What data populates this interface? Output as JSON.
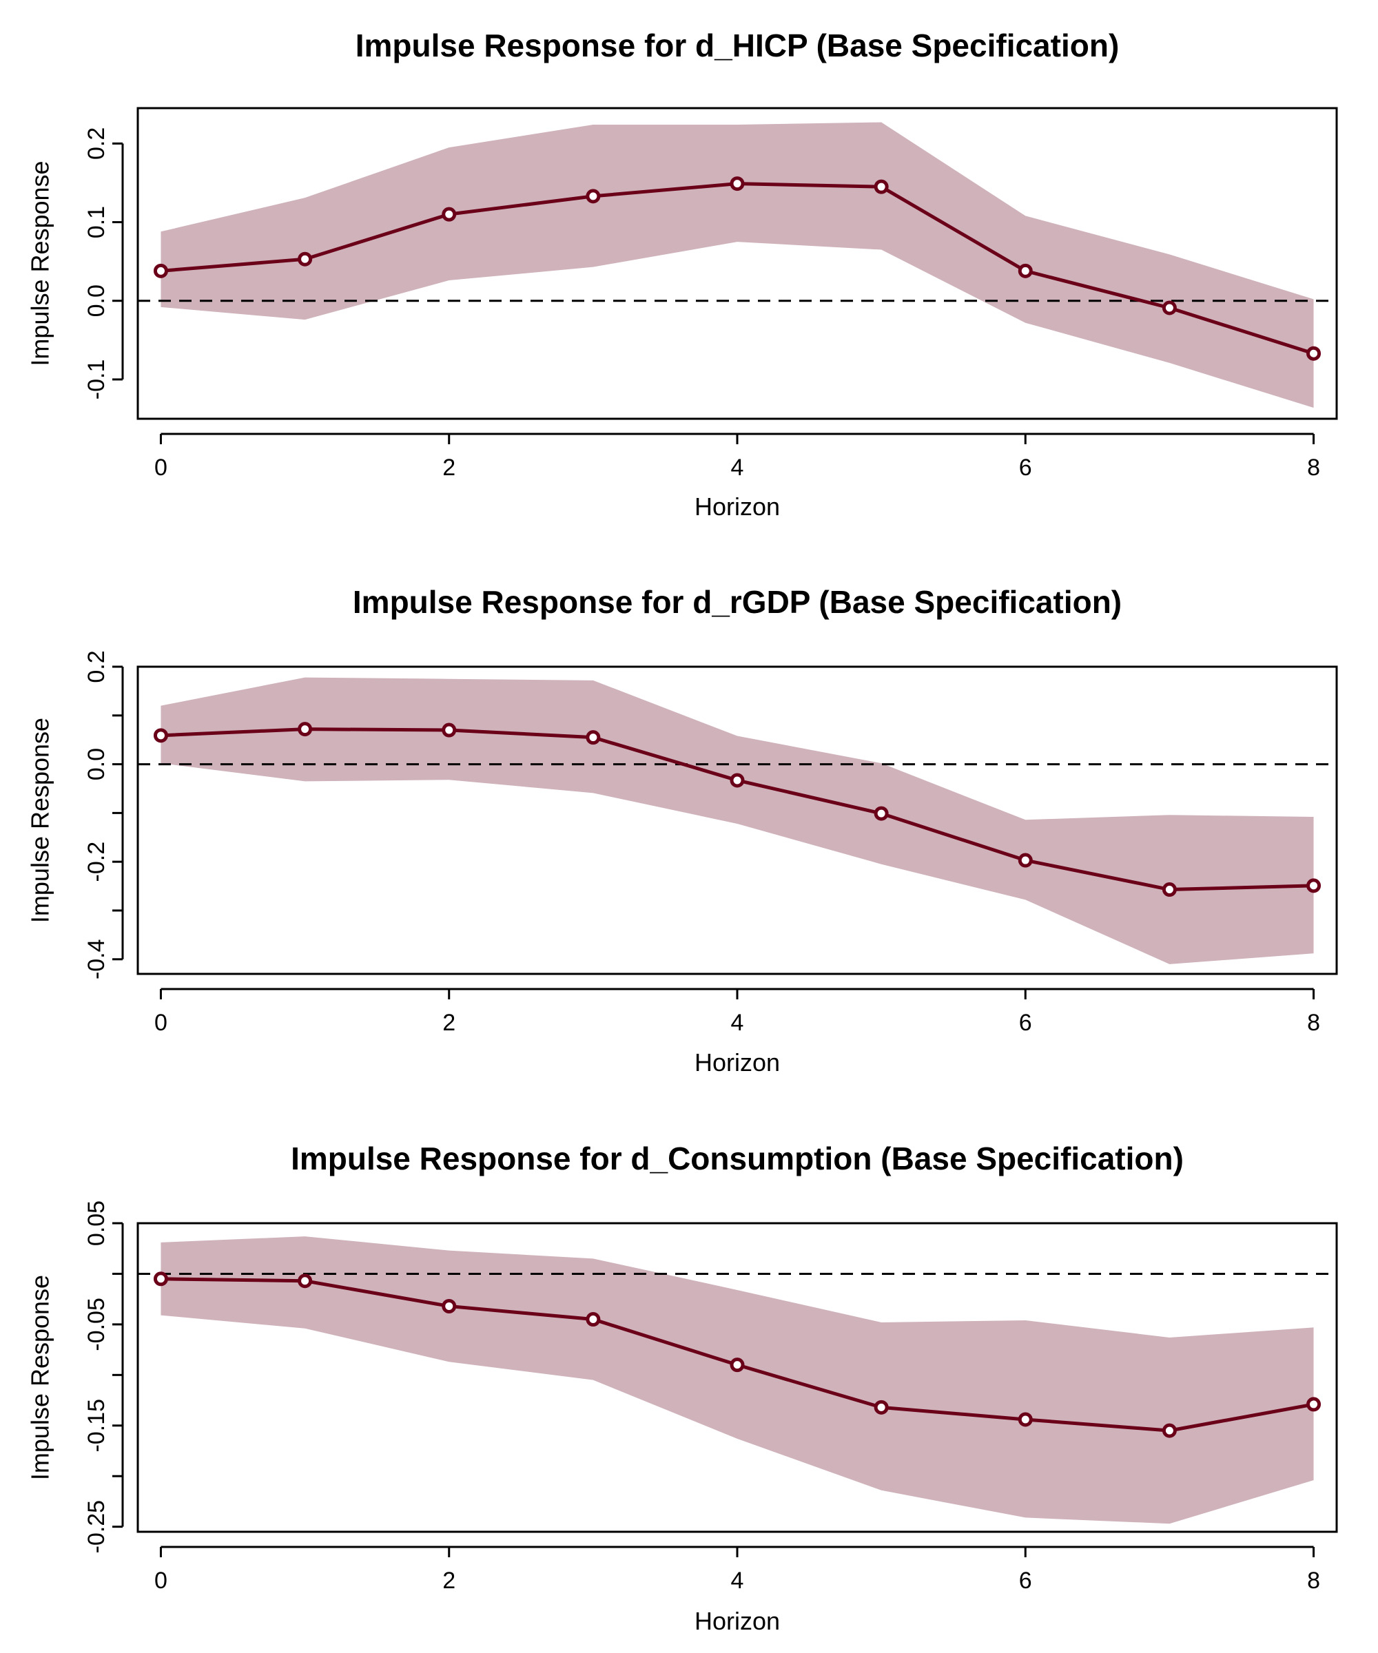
{
  "colors": {
    "line": "#6b0019",
    "band": "#cfb2ba"
  },
  "chart_data": [
    {
      "type": "line",
      "title": "Impulse Response for d_HICP (Base Specification)",
      "xlabel": "Horizon",
      "ylabel": "Impulse Response",
      "x": [
        0,
        1,
        2,
        3,
        4,
        5,
        6,
        7,
        8
      ],
      "xlim": [
        -0.16,
        8.16
      ],
      "ylim": [
        -0.15,
        0.245
      ],
      "xticks": [
        0,
        2,
        4,
        6,
        8
      ],
      "xtick_labels": [
        "0",
        "2",
        "4",
        "6",
        "8"
      ],
      "yticks": [
        -0.1,
        0.0,
        0.1,
        0.2
      ],
      "ytick_labels": [
        "-0.1",
        "0.0",
        "0.1",
        "0.2"
      ],
      "minor_yticks": [],
      "reference_line": 0,
      "series": [
        {
          "values": [
            0.038,
            0.053,
            0.11,
            0.133,
            0.149,
            0.145,
            0.038,
            -0.009,
            -0.067
          ]
        }
      ],
      "band_upper": [
        0.088,
        0.131,
        0.195,
        0.224,
        0.224,
        0.227,
        0.108,
        0.059,
        0.002
      ],
      "band_lower": [
        -0.008,
        -0.024,
        0.026,
        0.043,
        0.075,
        0.065,
        -0.028,
        -0.079,
        -0.136
      ]
    },
    {
      "type": "line",
      "title": "Impulse Response for d_rGDP (Base Specification)",
      "xlabel": "Horizon",
      "ylabel": "Impulse Response",
      "x": [
        0,
        1,
        2,
        3,
        4,
        5,
        6,
        7,
        8
      ],
      "xlim": [
        -0.16,
        8.16
      ],
      "ylim": [
        -0.43,
        0.2
      ],
      "xticks": [
        0,
        2,
        4,
        6,
        8
      ],
      "xtick_labels": [
        "0",
        "2",
        "4",
        "6",
        "8"
      ],
      "yticks": [
        -0.4,
        -0.2,
        0.0,
        0.2
      ],
      "ytick_labels": [
        "-0.4",
        "-0.2",
        "0.0",
        "0.2"
      ],
      "minor_yticks": [
        -0.3,
        -0.1,
        0.1
      ],
      "reference_line": 0,
      "series": [
        {
          "values": [
            0.059,
            0.072,
            0.07,
            0.055,
            -0.033,
            -0.101,
            -0.197,
            -0.257,
            -0.249
          ]
        }
      ],
      "band_upper": [
        0.12,
        0.178,
        0.175,
        0.172,
        0.058,
        0.002,
        -0.114,
        -0.104,
        -0.108
      ],
      "band_lower": [
        0.002,
        -0.035,
        -0.032,
        -0.059,
        -0.122,
        -0.205,
        -0.278,
        -0.41,
        -0.388
      ]
    },
    {
      "type": "line",
      "title": "Impulse Response for d_Consumption (Base Specification)",
      "xlabel": "Horizon",
      "ylabel": "Impulse Response",
      "x": [
        0,
        1,
        2,
        3,
        4,
        5,
        6,
        7,
        8
      ],
      "xlim": [
        -0.16,
        8.16
      ],
      "ylim": [
        -0.255,
        0.05
      ],
      "xticks": [
        0,
        2,
        4,
        6,
        8
      ],
      "xtick_labels": [
        "0",
        "2",
        "4",
        "6",
        "8"
      ],
      "yticks": [
        0.05,
        -0.05,
        -0.15,
        -0.25
      ],
      "ytick_labels": [
        "0.05",
        "-0.05",
        "-0.15",
        "-0.25"
      ],
      "minor_yticks": [
        0.0,
        -0.1,
        -0.2
      ],
      "reference_line": 0,
      "series": [
        {
          "values": [
            -0.005,
            -0.007,
            -0.032,
            -0.045,
            -0.09,
            -0.132,
            -0.144,
            -0.155,
            -0.129
          ]
        }
      ],
      "band_upper": [
        0.031,
        0.037,
        0.023,
        0.015,
        -0.016,
        -0.048,
        -0.046,
        -0.063,
        -0.053
      ],
      "band_lower": [
        -0.041,
        -0.054,
        -0.087,
        -0.105,
        -0.163,
        -0.214,
        -0.241,
        -0.247,
        -0.204
      ]
    }
  ]
}
